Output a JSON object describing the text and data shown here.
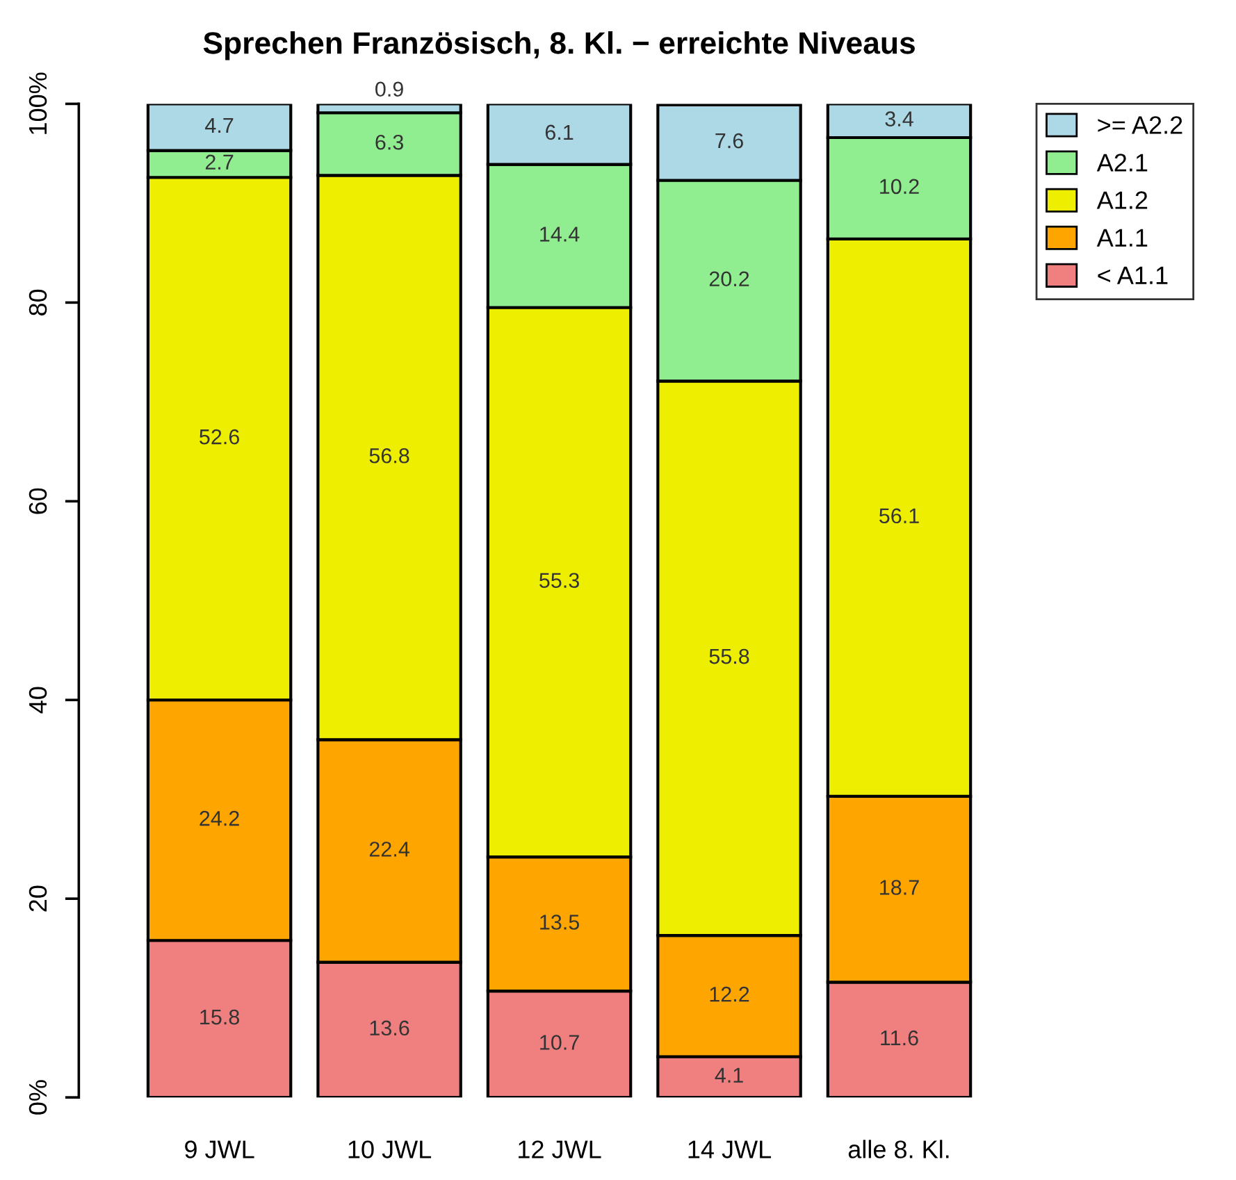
{
  "chart_data": {
    "type": "bar",
    "title": "Sprechen Französisch, 8. Kl. − erreichte Niveaus",
    "categories": [
      "9 JWL",
      "10 JWL",
      "12 JWL",
      "14 JWL",
      "alle 8. Kl."
    ],
    "stacked": true,
    "series": [
      {
        "name": "< A1.1",
        "color": "#f08080",
        "values": [
          15.8,
          13.6,
          10.7,
          4.1,
          11.6
        ]
      },
      {
        "name": "A1.1",
        "color": "#ffa500",
        "values": [
          24.2,
          22.4,
          13.5,
          12.2,
          18.7
        ]
      },
      {
        "name": "A1.2",
        "color": "#eeee00",
        "values": [
          52.6,
          56.8,
          55.3,
          55.8,
          56.1
        ]
      },
      {
        "name": "A2.1",
        "color": "#90ee90",
        "values": [
          2.7,
          6.3,
          14.4,
          20.2,
          10.2
        ]
      },
      {
        "name": ">= A2.2",
        "color": "#add8e6",
        "values": [
          4.7,
          0.9,
          6.1,
          7.6,
          3.4
        ]
      }
    ],
    "ylim": [
      0,
      100
    ],
    "yticks": [
      {
        "value": 0,
        "label": "0%"
      },
      20,
      40,
      60,
      80,
      {
        "value": 100,
        "label": "100%"
      }
    ],
    "data_labels": true,
    "grid": false,
    "legend": "top right"
  }
}
